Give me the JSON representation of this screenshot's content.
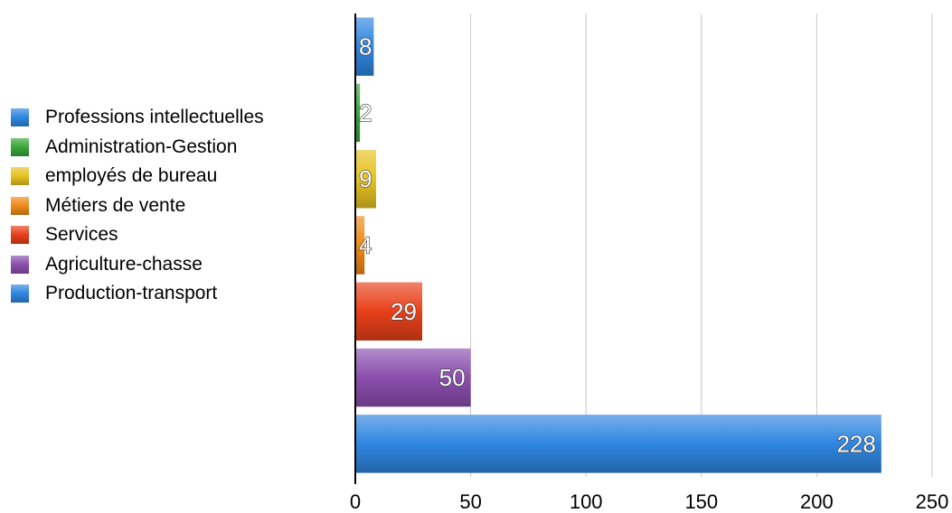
{
  "chart_data": {
    "type": "bar",
    "orientation": "horizontal",
    "categories": [
      "Professions intellectuelles",
      "Administration-Gestion",
      "employés de bureau",
      "Métiers de vente",
      "Services",
      "Agriculture-chasse",
      "Production-transport"
    ],
    "values": [
      8,
      2,
      9,
      4,
      29,
      50,
      228
    ],
    "value_labels": [
      "8",
      "2",
      "9",
      "4",
      "29",
      "50",
      "228"
    ],
    "colors": [
      "#2f86e0",
      "#3aa63a",
      "#e6c222",
      "#ee8a18",
      "#e8401a",
      "#8b4fae",
      "#2f86e0"
    ],
    "xlim": [
      0,
      250
    ],
    "x_ticks": [
      0,
      50,
      100,
      150,
      200,
      250
    ],
    "x_tick_labels": [
      "0",
      "50",
      "100",
      "150",
      "200",
      "250"
    ],
    "grid": "vertical",
    "legend_position": "left",
    "title": "",
    "xlabel": "",
    "ylabel": ""
  }
}
